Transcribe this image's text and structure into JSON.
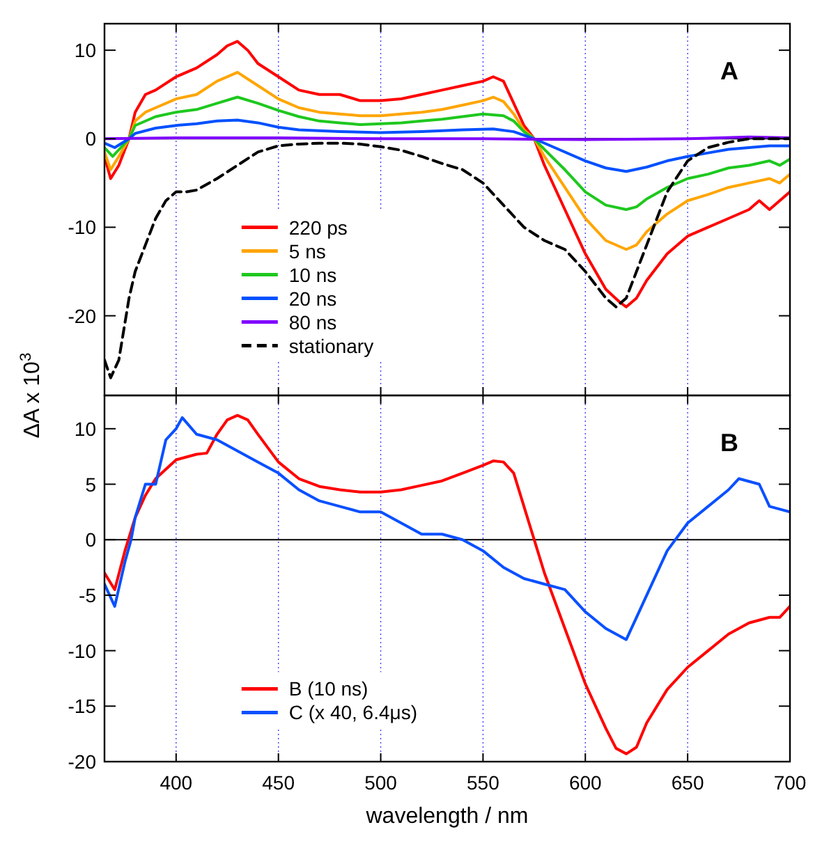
{
  "chart_data": [
    {
      "type": "line",
      "ylabel": "ΔA x 10$^{3}$",
      "xlim": [
        365,
        700
      ],
      "ylim": [
        -29,
        13
      ],
      "xticks": [
        400,
        450,
        500,
        550,
        600,
        650,
        700
      ],
      "yticks": [
        -20,
        -10,
        0,
        10
      ],
      "tick_labels": "y",
      "grid": "x",
      "legend": "bottom left",
      "ref_lines": [
        {
          "axis": "y",
          "value": 0,
          "color": "#000000"
        }
      ],
      "annotations": [
        "A"
      ],
      "series": [
        {
          "name": "220 ps",
          "color": "#ff0000",
          "x": [
            365,
            368,
            372,
            377,
            380,
            385,
            390,
            400,
            410,
            420,
            425,
            430,
            435,
            440,
            450,
            460,
            470,
            480,
            490,
            500,
            510,
            520,
            530,
            540,
            550,
            555,
            560,
            565,
            570,
            575,
            580,
            590,
            600,
            610,
            617,
            620,
            625,
            630,
            640,
            650,
            660,
            670,
            680,
            685,
            690,
            695,
            700
          ],
          "values": [
            -2,
            -4.5,
            -3,
            0,
            3,
            5,
            5.5,
            7,
            8,
            9.5,
            10.5,
            11,
            10,
            8.5,
            7,
            5.5,
            5,
            5,
            4.3,
            4.3,
            4.5,
            5,
            5.5,
            6,
            6.5,
            7,
            6.5,
            4,
            1.5,
            0,
            -3,
            -8,
            -13,
            -17,
            -18.5,
            -19,
            -18,
            -16,
            -13,
            -11,
            -10,
            -9,
            -8,
            -7,
            -8,
            -7,
            -6
          ]
        },
        {
          "name": "5 ns",
          "color": "#ffa500",
          "x": [
            365,
            368,
            372,
            377,
            380,
            385,
            390,
            400,
            410,
            420,
            430,
            440,
            450,
            460,
            470,
            480,
            490,
            500,
            510,
            520,
            530,
            540,
            550,
            555,
            560,
            565,
            570,
            575,
            580,
            590,
            600,
            610,
            620,
            625,
            630,
            640,
            650,
            660,
            670,
            680,
            690,
            695,
            700
          ],
          "values": [
            -1.5,
            -3.5,
            -2,
            0,
            2,
            3,
            3.5,
            4.5,
            5,
            6.5,
            7.5,
            6,
            4.5,
            3.5,
            3,
            2.8,
            2.6,
            2.6,
            2.8,
            3,
            3.3,
            3.8,
            4.3,
            4.7,
            4.2,
            2.8,
            1,
            0,
            -2,
            -5.5,
            -9,
            -11.5,
            -12.5,
            -12,
            -10.5,
            -8.5,
            -7,
            -6.3,
            -5.5,
            -5,
            -4.5,
            -5,
            -4
          ]
        },
        {
          "name": "10 ns",
          "color": "#1ec81e",
          "x": [
            365,
            369,
            373,
            377,
            380,
            390,
            400,
            410,
            420,
            430,
            440,
            450,
            460,
            470,
            480,
            490,
            500,
            510,
            520,
            530,
            540,
            550,
            560,
            565,
            570,
            575,
            580,
            590,
            600,
            610,
            620,
            625,
            630,
            640,
            650,
            660,
            670,
            680,
            690,
            695,
            700
          ],
          "values": [
            -1,
            -2,
            -1,
            0,
            1.5,
            2.5,
            3,
            3.3,
            4,
            4.7,
            4,
            3.2,
            2.5,
            2,
            1.8,
            1.6,
            1.7,
            1.8,
            2,
            2.2,
            2.5,
            2.8,
            2.6,
            2,
            0.8,
            0,
            -1.2,
            -3.5,
            -6,
            -7.5,
            -8,
            -7.7,
            -6.8,
            -5.5,
            -4.5,
            -4,
            -3.3,
            -3,
            -2.5,
            -3,
            -2.3
          ]
        },
        {
          "name": "20 ns",
          "color": "#0050ff",
          "x": [
            365,
            370,
            377,
            380,
            390,
            400,
            410,
            420,
            430,
            440,
            450,
            460,
            480,
            500,
            520,
            540,
            555,
            565,
            575,
            585,
            600,
            610,
            620,
            630,
            640,
            650,
            660,
            670,
            680,
            690,
            700
          ],
          "values": [
            -0.5,
            -1,
            0,
            0.6,
            1.2,
            1.5,
            1.7,
            2,
            2.1,
            1.8,
            1.3,
            1,
            0.8,
            0.7,
            0.8,
            1,
            1.1,
            0.8,
            0,
            -1,
            -2.5,
            -3.3,
            -3.7,
            -3.2,
            -2.5,
            -2,
            -1.6,
            -1.2,
            -1,
            -0.8,
            -0.8
          ]
        },
        {
          "name": "80 ns",
          "color": "#8000ff",
          "x": [
            365,
            400,
            450,
            500,
            550,
            600,
            650,
            680,
            700
          ],
          "values": [
            0,
            0.1,
            0.1,
            0,
            0,
            -0.1,
            0,
            0.2,
            0.1
          ]
        },
        {
          "name": "stationary",
          "color": "#000000",
          "line_style": "dashed",
          "x": [
            365,
            368,
            372,
            377,
            380,
            385,
            390,
            395,
            400,
            405,
            410,
            420,
            430,
            440,
            450,
            460,
            470,
            480,
            490,
            500,
            510,
            520,
            530,
            540,
            550,
            560,
            570,
            580,
            590,
            600,
            610,
            615,
            620,
            630,
            640,
            650,
            660,
            670,
            680,
            690,
            700
          ],
          "values": [
            -25,
            -27,
            -25,
            -18,
            -15,
            -12,
            -9,
            -7,
            -6,
            -6,
            -5.8,
            -4.5,
            -3,
            -1.5,
            -0.8,
            -0.6,
            -0.5,
            -0.5,
            -0.6,
            -0.9,
            -1.3,
            -2,
            -2.8,
            -3.5,
            -5,
            -7.5,
            -10,
            -11.5,
            -12.5,
            -15,
            -18,
            -19,
            -18,
            -12,
            -6,
            -2.5,
            -1,
            -0.4,
            0,
            0,
            0
          ]
        }
      ]
    },
    {
      "type": "line",
      "xlabel": "wavelength / nm",
      "xlim": [
        365,
        700
      ],
      "ylim": [
        -20,
        13
      ],
      "xticks": [
        400,
        450,
        500,
        550,
        600,
        650,
        700
      ],
      "yticks": [
        -20,
        -15,
        -10,
        -5,
        0,
        5,
        10
      ],
      "grid": "x",
      "legend": "bottom left",
      "ref_lines": [
        {
          "axis": "y",
          "value": 0,
          "color": "#000000"
        }
      ],
      "annotations": [
        "B"
      ],
      "series": [
        {
          "name": "B (10 ns)",
          "color": "#ff0000",
          "x": [
            365,
            370,
            375,
            380,
            385,
            390,
            400,
            410,
            415,
            420,
            425,
            430,
            435,
            440,
            450,
            460,
            470,
            480,
            490,
            500,
            510,
            520,
            530,
            540,
            550,
            555,
            560,
            565,
            570,
            575,
            580,
            590,
            600,
            610,
            615,
            620,
            625,
            630,
            640,
            650,
            660,
            670,
            680,
            690,
            695,
            700
          ],
          "values": [
            -3,
            -4.5,
            -1,
            2,
            4,
            5.5,
            7.2,
            7.7,
            7.8,
            9.5,
            10.8,
            11.2,
            10.8,
            9.5,
            7,
            5.5,
            4.8,
            4.5,
            4.3,
            4.3,
            4.5,
            4.9,
            5.3,
            6,
            6.7,
            7.1,
            7,
            6,
            3,
            0,
            -3,
            -8,
            -13,
            -17,
            -18.8,
            -19.3,
            -18.7,
            -16.5,
            -13.5,
            -11.5,
            -10,
            -8.5,
            -7.5,
            -7,
            -7,
            -6
          ]
        },
        {
          "name": "C (x 40, 6.4μs)",
          "color": "#0a50ff",
          "x": [
            365,
            370,
            375,
            378,
            380,
            385,
            390,
            395,
            400,
            403,
            410,
            420,
            430,
            440,
            450,
            460,
            470,
            480,
            490,
            500,
            510,
            520,
            530,
            540,
            550,
            560,
            570,
            580,
            590,
            600,
            610,
            620,
            625,
            630,
            640,
            650,
            660,
            670,
            675,
            685,
            690,
            700
          ],
          "values": [
            -4,
            -6,
            -2,
            0,
            2,
            5,
            5,
            9,
            10,
            11,
            9.5,
            9,
            8,
            7,
            6,
            4.5,
            3.5,
            3,
            2.5,
            2.5,
            1.5,
            0.5,
            0.5,
            0,
            -1,
            -2.5,
            -3.5,
            -4,
            -4.5,
            -6.5,
            -8,
            -9,
            -7,
            -5,
            -1,
            1.5,
            3,
            4.5,
            5.5,
            5,
            3,
            2.5
          ]
        }
      ]
    }
  ]
}
